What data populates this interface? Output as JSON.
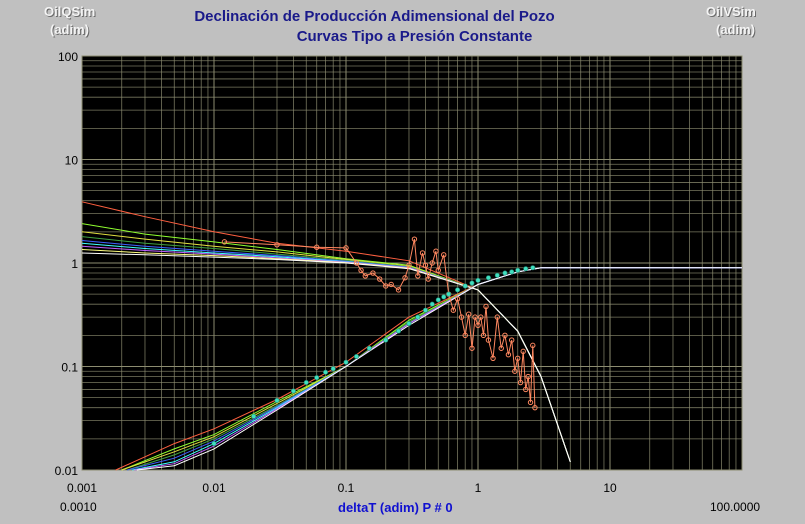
{
  "header": {
    "title_line1": "Declinación de Producción Adimensional del Pozo",
    "title_line2": "Curvas Tipo a Presión Constante",
    "left_axis_name": "OilQSim",
    "left_axis_unit": "(adim)",
    "right_axis_name": "OilVSim",
    "right_axis_unit": "(adim)"
  },
  "footer": {
    "xlabel": "deltaT  (adim)  P # 0",
    "x_min_readout": "0.0010",
    "x_max_readout": "100.0000"
  },
  "chart_data": {
    "type": "line",
    "x_scale": "log",
    "y_scale": "log",
    "xlim": [
      0.001,
      100
    ],
    "ylim": [
      0.01,
      100
    ],
    "x_tick_labels": [
      "0.001",
      "0.01",
      "0.1",
      "1",
      "10"
    ],
    "y_tick_labels": [
      "100",
      "10",
      "1",
      "0.1",
      "0.01"
    ],
    "grid": true,
    "plot_background": "#000000",
    "grid_color": "#8c8c70",
    "rate_curves": [
      {
        "color": "#ff6040",
        "x": [
          0.001,
          0.003,
          0.01,
          0.03,
          0.1,
          0.3,
          1,
          2,
          3,
          5
        ],
        "y": [
          3.9,
          2.8,
          2.0,
          1.55,
          1.3,
          1.05,
          0.55,
          0.22,
          0.08,
          0.012
        ]
      },
      {
        "color": "#90ff30",
        "x": [
          0.001,
          0.003,
          0.01,
          0.03,
          0.1,
          0.3,
          1,
          2,
          3,
          5
        ],
        "y": [
          2.4,
          1.9,
          1.6,
          1.35,
          1.1,
          0.95,
          0.55,
          0.22,
          0.08,
          0.012
        ]
      },
      {
        "color": "#e0e040",
        "x": [
          0.001,
          0.003,
          0.01,
          0.03,
          0.1,
          0.3,
          1,
          2,
          3,
          5
        ],
        "y": [
          2.0,
          1.7,
          1.45,
          1.28,
          1.08,
          0.93,
          0.55,
          0.22,
          0.08,
          0.012
        ]
      },
      {
        "color": "#40a040",
        "x": [
          0.001,
          0.003,
          0.01,
          0.03,
          0.1,
          0.3,
          1,
          2,
          3,
          5
        ],
        "y": [
          1.8,
          1.55,
          1.38,
          1.22,
          1.06,
          0.92,
          0.55,
          0.22,
          0.08,
          0.012
        ]
      },
      {
        "color": "#4060ff",
        "x": [
          0.001,
          0.003,
          0.01,
          0.03,
          0.1,
          0.3,
          1,
          2,
          3,
          5
        ],
        "y": [
          1.65,
          1.45,
          1.3,
          1.18,
          1.04,
          0.91,
          0.55,
          0.22,
          0.08,
          0.012
        ]
      },
      {
        "color": "#40ffff",
        "x": [
          0.001,
          0.003,
          0.01,
          0.03,
          0.1,
          0.3,
          1,
          2,
          3,
          5
        ],
        "y": [
          1.55,
          1.38,
          1.25,
          1.15,
          1.03,
          0.9,
          0.55,
          0.22,
          0.08,
          0.012
        ]
      },
      {
        "color": "#c060ff",
        "x": [
          0.001,
          0.003,
          0.01,
          0.03,
          0.1,
          0.3,
          1,
          2,
          3,
          5
        ],
        "y": [
          1.45,
          1.32,
          1.22,
          1.12,
          1.02,
          0.9,
          0.55,
          0.22,
          0.08,
          0.012
        ]
      },
      {
        "color": "#ffff80",
        "x": [
          0.001,
          0.003,
          0.01,
          0.03,
          0.1,
          0.3,
          1,
          2,
          3,
          5
        ],
        "y": [
          1.35,
          1.25,
          1.18,
          1.1,
          1.01,
          0.89,
          0.55,
          0.22,
          0.08,
          0.012
        ]
      },
      {
        "color": "#ffffff",
        "x": [
          0.001,
          0.003,
          0.01,
          0.03,
          0.1,
          0.3,
          1,
          2,
          3,
          5
        ],
        "y": [
          1.25,
          1.2,
          1.14,
          1.08,
          1.0,
          0.88,
          0.55,
          0.22,
          0.08,
          0.012
        ]
      }
    ],
    "cumulative_curves": [
      {
        "color": "#ff6040",
        "x": [
          0.0018,
          0.005,
          0.01,
          0.03,
          0.1,
          0.3,
          1,
          2,
          3,
          100
        ],
        "y": [
          0.01,
          0.018,
          0.025,
          0.048,
          0.11,
          0.3,
          0.62,
          0.82,
          0.9,
          0.9
        ]
      },
      {
        "color": "#90ff30",
        "x": [
          0.002,
          0.005,
          0.01,
          0.03,
          0.1,
          0.3,
          1,
          2,
          3,
          100
        ],
        "y": [
          0.01,
          0.016,
          0.022,
          0.046,
          0.1,
          0.28,
          0.62,
          0.82,
          0.9,
          0.9
        ]
      },
      {
        "color": "#e0e040",
        "x": [
          0.002,
          0.005,
          0.01,
          0.03,
          0.1,
          0.3,
          1,
          2,
          3,
          100
        ],
        "y": [
          0.01,
          0.015,
          0.021,
          0.044,
          0.1,
          0.27,
          0.62,
          0.82,
          0.9,
          0.9
        ]
      },
      {
        "color": "#40a040",
        "x": [
          0.0022,
          0.005,
          0.01,
          0.03,
          0.1,
          0.3,
          1,
          2,
          3,
          100
        ],
        "y": [
          0.01,
          0.014,
          0.02,
          0.042,
          0.1,
          0.27,
          0.62,
          0.82,
          0.9,
          0.9
        ]
      },
      {
        "color": "#4060ff",
        "x": [
          0.0022,
          0.005,
          0.01,
          0.03,
          0.1,
          0.3,
          1,
          2,
          3,
          100
        ],
        "y": [
          0.01,
          0.013,
          0.019,
          0.041,
          0.1,
          0.26,
          0.62,
          0.82,
          0.9,
          0.9
        ]
      },
      {
        "color": "#40ffff",
        "x": [
          0.0024,
          0.005,
          0.01,
          0.03,
          0.1,
          0.3,
          1,
          2,
          3,
          100
        ],
        "y": [
          0.01,
          0.012,
          0.018,
          0.04,
          0.1,
          0.26,
          0.62,
          0.82,
          0.9,
          0.9
        ]
      },
      {
        "color": "#c060ff",
        "x": [
          0.0025,
          0.005,
          0.01,
          0.03,
          0.1,
          0.3,
          1,
          2,
          3,
          100
        ],
        "y": [
          0.01,
          0.0115,
          0.017,
          0.039,
          0.1,
          0.26,
          0.62,
          0.82,
          0.9,
          0.9
        ]
      },
      {
        "color": "#ffffff",
        "x": [
          0.0026,
          0.005,
          0.01,
          0.03,
          0.1,
          0.3,
          1,
          2,
          3,
          100
        ],
        "y": [
          0.01,
          0.011,
          0.016,
          0.038,
          0.1,
          0.25,
          0.62,
          0.82,
          0.9,
          0.9
        ]
      }
    ],
    "rate_data_points": {
      "color": "#ff8860",
      "x": [
        0.012,
        0.03,
        0.06,
        0.1,
        0.12,
        0.13,
        0.14,
        0.16,
        0.18,
        0.2,
        0.22,
        0.25,
        0.28,
        0.3,
        0.33,
        0.35,
        0.38,
        0.4,
        0.42,
        0.45,
        0.48,
        0.5,
        0.55,
        0.6,
        0.65,
        0.7,
        0.75,
        0.8,
        0.85,
        0.9,
        0.95,
        1.0,
        1.05,
        1.1,
        1.15,
        1.2,
        1.3,
        1.4,
        1.5,
        1.6,
        1.7,
        1.8,
        1.9,
        2.0,
        2.1,
        2.2,
        2.3,
        2.4,
        2.5,
        2.6,
        2.7
      ],
      "y": [
        1.6,
        1.5,
        1.42,
        1.4,
        1.0,
        0.85,
        0.75,
        0.8,
        0.7,
        0.6,
        0.62,
        0.55,
        0.72,
        0.95,
        1.7,
        0.75,
        1.25,
        0.95,
        0.7,
        1.0,
        1.3,
        0.85,
        1.2,
        0.5,
        0.35,
        0.45,
        0.3,
        0.2,
        0.32,
        0.15,
        0.3,
        0.25,
        0.3,
        0.2,
        0.38,
        0.18,
        0.12,
        0.3,
        0.15,
        0.2,
        0.13,
        0.18,
        0.09,
        0.12,
        0.07,
        0.14,
        0.06,
        0.08,
        0.045,
        0.16,
        0.04
      ]
    },
    "cumulative_data_points": {
      "color": "#40e0c0",
      "x": [
        0.01,
        0.02,
        0.03,
        0.04,
        0.05,
        0.06,
        0.07,
        0.08,
        0.1,
        0.12,
        0.15,
        0.2,
        0.25,
        0.3,
        0.35,
        0.4,
        0.45,
        0.5,
        0.55,
        0.6,
        0.7,
        0.8,
        0.9,
        1.0,
        1.2,
        1.4,
        1.6,
        1.8,
        2.0,
        2.3,
        2.6
      ],
      "y": [
        0.018,
        0.033,
        0.047,
        0.058,
        0.07,
        0.078,
        0.088,
        0.095,
        0.11,
        0.125,
        0.15,
        0.18,
        0.22,
        0.26,
        0.3,
        0.35,
        0.4,
        0.44,
        0.47,
        0.5,
        0.55,
        0.6,
        0.64,
        0.68,
        0.72,
        0.76,
        0.8,
        0.82,
        0.85,
        0.88,
        0.9
      ]
    }
  }
}
